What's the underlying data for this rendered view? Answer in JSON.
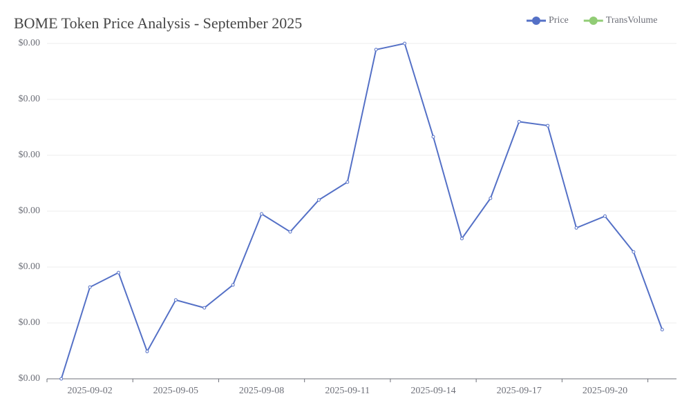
{
  "chart_data": {
    "type": "line",
    "title": "BOME Token Price Analysis - September 2025",
    "categories": [
      null,
      "2025-09-02",
      null,
      null,
      "2025-09-05",
      null,
      null,
      "2025-09-08",
      null,
      null,
      "2025-09-11",
      null,
      null,
      "2025-09-14",
      null,
      null,
      "2025-09-17",
      null,
      null,
      "2025-09-20",
      null,
      null
    ],
    "series": [
      {
        "name": "Price",
        "color": "#5470c6",
        "values": [
          0.0017,
          0.001864,
          0.00189,
          0.001749,
          0.001841,
          0.001827,
          0.001868,
          0.001995,
          0.001963,
          0.00202,
          0.002052,
          0.002289,
          0.0023,
          0.002133,
          0.001951,
          0.002023,
          0.00216,
          0.002153,
          0.00197,
          0.001991,
          0.001927,
          0.001788
        ]
      },
      {
        "name": "TransVolume",
        "color": "#91cc75",
        "values": [
          null,
          null,
          null,
          null,
          null,
          null,
          null,
          null,
          null,
          null,
          null,
          null,
          null,
          null,
          null,
          null,
          null,
          null,
          null,
          null,
          null,
          null
        ]
      }
    ],
    "ylim": [
      0.0017,
      0.0023
    ],
    "yticks": [
      {
        "value": 0.0017,
        "label": "$0.00"
      },
      {
        "value": 0.0018,
        "label": "$0.00"
      },
      {
        "value": 0.0019,
        "label": "$0.00"
      },
      {
        "value": 0.002,
        "label": "$0.00"
      },
      {
        "value": 0.0021,
        "label": "$0.00"
      },
      {
        "value": 0.0022,
        "label": "$0.00"
      },
      {
        "value": 0.0023,
        "label": "$0.00"
      }
    ],
    "grid": true,
    "legend": "top-right"
  }
}
